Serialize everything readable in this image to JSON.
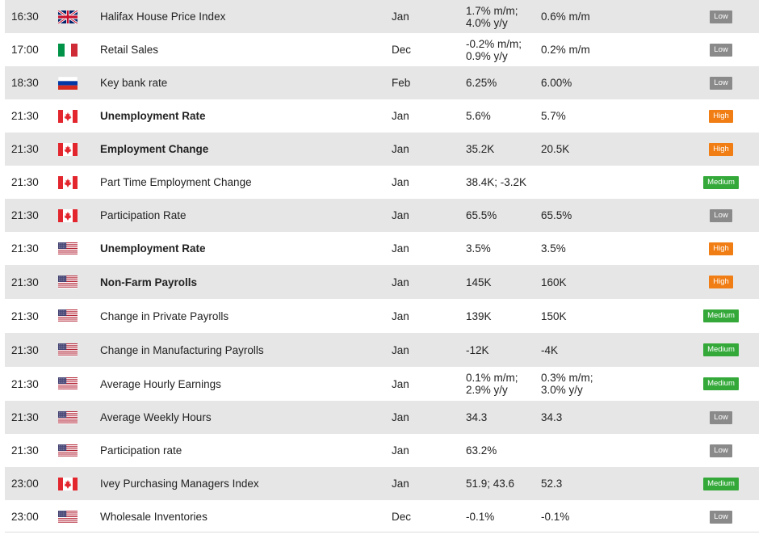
{
  "colors": {
    "row_shade": "#e6e6e6",
    "impact_low": "#8a8a8a",
    "impact_high": "#f07e14",
    "impact_medium": "#34a93a"
  },
  "events": [
    {
      "time": "16:30",
      "country": "uk-flag-icon",
      "event": "Halifax House Price Index",
      "bold": false,
      "period": "Jan",
      "actual": "1.7% m/m;\n4.0% y/y",
      "forecast": "0.6% m/m",
      "impact": "Low"
    },
    {
      "time": "17:00",
      "country": "italy-flag-icon",
      "event": "Retail Sales",
      "bold": false,
      "period": "Dec",
      "actual": "-0.2% m/m;\n0.9% y/y",
      "forecast": "0.2% m/m",
      "impact": "Low"
    },
    {
      "time": "18:30",
      "country": "russia-flag-icon",
      "event": "Key bank rate",
      "bold": false,
      "period": "Feb",
      "actual": "6.25%",
      "forecast": "6.00%",
      "impact": "Low"
    },
    {
      "time": "21:30",
      "country": "canada-flag-icon",
      "event": "Unemployment Rate",
      "bold": true,
      "period": "Jan",
      "actual": "5.6%",
      "forecast": "5.7%",
      "impact": "High"
    },
    {
      "time": "21:30",
      "country": "canada-flag-icon",
      "event": "Employment Change",
      "bold": true,
      "period": "Jan",
      "actual": "35.2K",
      "forecast": "20.5K",
      "impact": "High"
    },
    {
      "time": "21:30",
      "country": "canada-flag-icon",
      "event": "Part Time Employment Change",
      "bold": false,
      "period": "Jan",
      "actual": "38.4K; -3.2K",
      "forecast": "",
      "impact": "Medium"
    },
    {
      "time": "21:30",
      "country": "canada-flag-icon",
      "event": "Participation Rate",
      "bold": false,
      "period": "Jan",
      "actual": "65.5%",
      "forecast": "65.5%",
      "impact": "Low"
    },
    {
      "time": "21:30",
      "country": "usa-flag-icon",
      "event": "Unemployment Rate",
      "bold": true,
      "period": "Jan",
      "actual": "3.5%",
      "forecast": "3.5%",
      "impact": "High"
    },
    {
      "time": "21:30",
      "country": "usa-flag-icon",
      "event": "Non-Farm Payrolls",
      "bold": true,
      "period": "Jan",
      "actual": "145K",
      "forecast": "160K",
      "impact": "High"
    },
    {
      "time": "21:30",
      "country": "usa-flag-icon",
      "event": "Change in Private Payrolls",
      "bold": false,
      "period": "Jan",
      "actual": "139K",
      "forecast": "150K",
      "impact": "Medium"
    },
    {
      "time": "21:30",
      "country": "usa-flag-icon",
      "event": "Change in Manufacturing Payrolls",
      "bold": false,
      "period": "Jan",
      "actual": "-12K",
      "forecast": "-4K",
      "impact": "Medium"
    },
    {
      "time": "21:30",
      "country": "usa-flag-icon",
      "event": "Average Hourly Earnings",
      "bold": false,
      "period": "Jan",
      "actual": "0.1% m/m;\n2.9% y/y",
      "forecast": "0.3% m/m;\n3.0% y/y",
      "impact": "Medium"
    },
    {
      "time": "21:30",
      "country": "usa-flag-icon",
      "event": "Average Weekly Hours",
      "bold": false,
      "period": "Jan",
      "actual": "34.3",
      "forecast": "34.3",
      "impact": "Low"
    },
    {
      "time": "21:30",
      "country": "usa-flag-icon",
      "event": "Participation rate",
      "bold": false,
      "period": "Jan",
      "actual": "63.2%",
      "forecast": "",
      "impact": "Low"
    },
    {
      "time": "23:00",
      "country": "canada-flag-icon",
      "event": "Ivey Purchasing Managers Index",
      "bold": false,
      "period": "Jan",
      "actual": "51.9; 43.6",
      "forecast": "52.3",
      "impact": "Medium"
    },
    {
      "time": "23:00",
      "country": "usa-flag-icon",
      "event": "Wholesale Inventories",
      "bold": false,
      "period": "Dec",
      "actual": "-0.1%",
      "forecast": "-0.1%",
      "impact": "Low"
    }
  ]
}
